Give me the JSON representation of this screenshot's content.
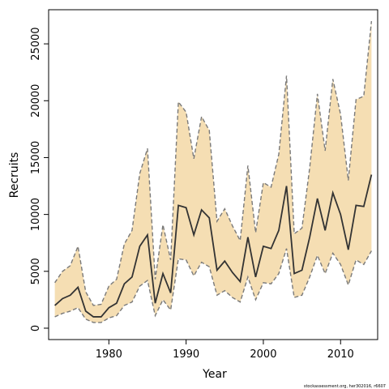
{
  "chart_data": {
    "type": "line",
    "title": "",
    "xlabel": "Year",
    "ylabel": "Recruits",
    "xlim": [
      1972.2,
      2014.8
    ],
    "ylim": [
      -1000,
      28000
    ],
    "x_ticks": [
      1980,
      1990,
      2000,
      2010
    ],
    "y_ticks": [
      0,
      5000,
      10000,
      15000,
      20000,
      25000
    ],
    "grid": false,
    "legend": "none",
    "colors": {
      "band": "#f5deb3",
      "bounds": "#7a7a7a",
      "estimate": "#333333",
      "frame": "#000000"
    },
    "x": [
      1973,
      1974,
      1975,
      1976,
      1977,
      1978,
      1979,
      1980,
      1981,
      1982,
      1983,
      1984,
      1985,
      1986,
      1987,
      1988,
      1989,
      1990,
      1991,
      1992,
      1993,
      1994,
      1995,
      1996,
      1997,
      1998,
      1999,
      2000,
      2001,
      2002,
      2003,
      2004,
      2005,
      2006,
      2007,
      2008,
      2009,
      2010,
      2011,
      2012,
      2013,
      2014
    ],
    "series": [
      {
        "role": "estimate",
        "values": [
          2000,
          2600,
          2900,
          3600,
          1500,
          1000,
          1000,
          1800,
          2200,
          3900,
          4500,
          7200,
          8200,
          2200,
          4800,
          3100,
          10800,
          10600,
          8200,
          10400,
          9700,
          5100,
          5900,
          4900,
          4100,
          8000,
          4500,
          7200,
          7000,
          8600,
          12500,
          4800,
          5100,
          8000,
          11400,
          8600,
          11900,
          10000,
          6900,
          10800,
          10700,
          13500
        ]
      },
      {
        "role": "upper",
        "values": [
          4000,
          5000,
          5500,
          7200,
          3200,
          2000,
          2100,
          3700,
          4300,
          7400,
          8600,
          13600,
          15800,
          4300,
          9100,
          6000,
          19900,
          19000,
          14900,
          18600,
          17400,
          9400,
          10500,
          9000,
          7700,
          14300,
          8400,
          12800,
          12400,
          15300,
          22200,
          8300,
          8800,
          14100,
          20600,
          15600,
          21900,
          18800,
          13000,
          20100,
          20400,
          27000
        ]
      },
      {
        "role": "lower",
        "values": [
          1000,
          1300,
          1500,
          1800,
          800,
          500,
          500,
          900,
          1100,
          2000,
          2300,
          3700,
          4200,
          1100,
          2500,
          1600,
          6100,
          6000,
          4600,
          5800,
          5400,
          2900,
          3300,
          2700,
          2300,
          4500,
          2500,
          4000,
          3900,
          4800,
          7000,
          2700,
          2900,
          4500,
          6400,
          4800,
          6600,
          5600,
          3800,
          6000,
          5600,
          6800
        ]
      }
    ]
  },
  "credit_text": "stockassessment.org,  her302016,  r6607"
}
